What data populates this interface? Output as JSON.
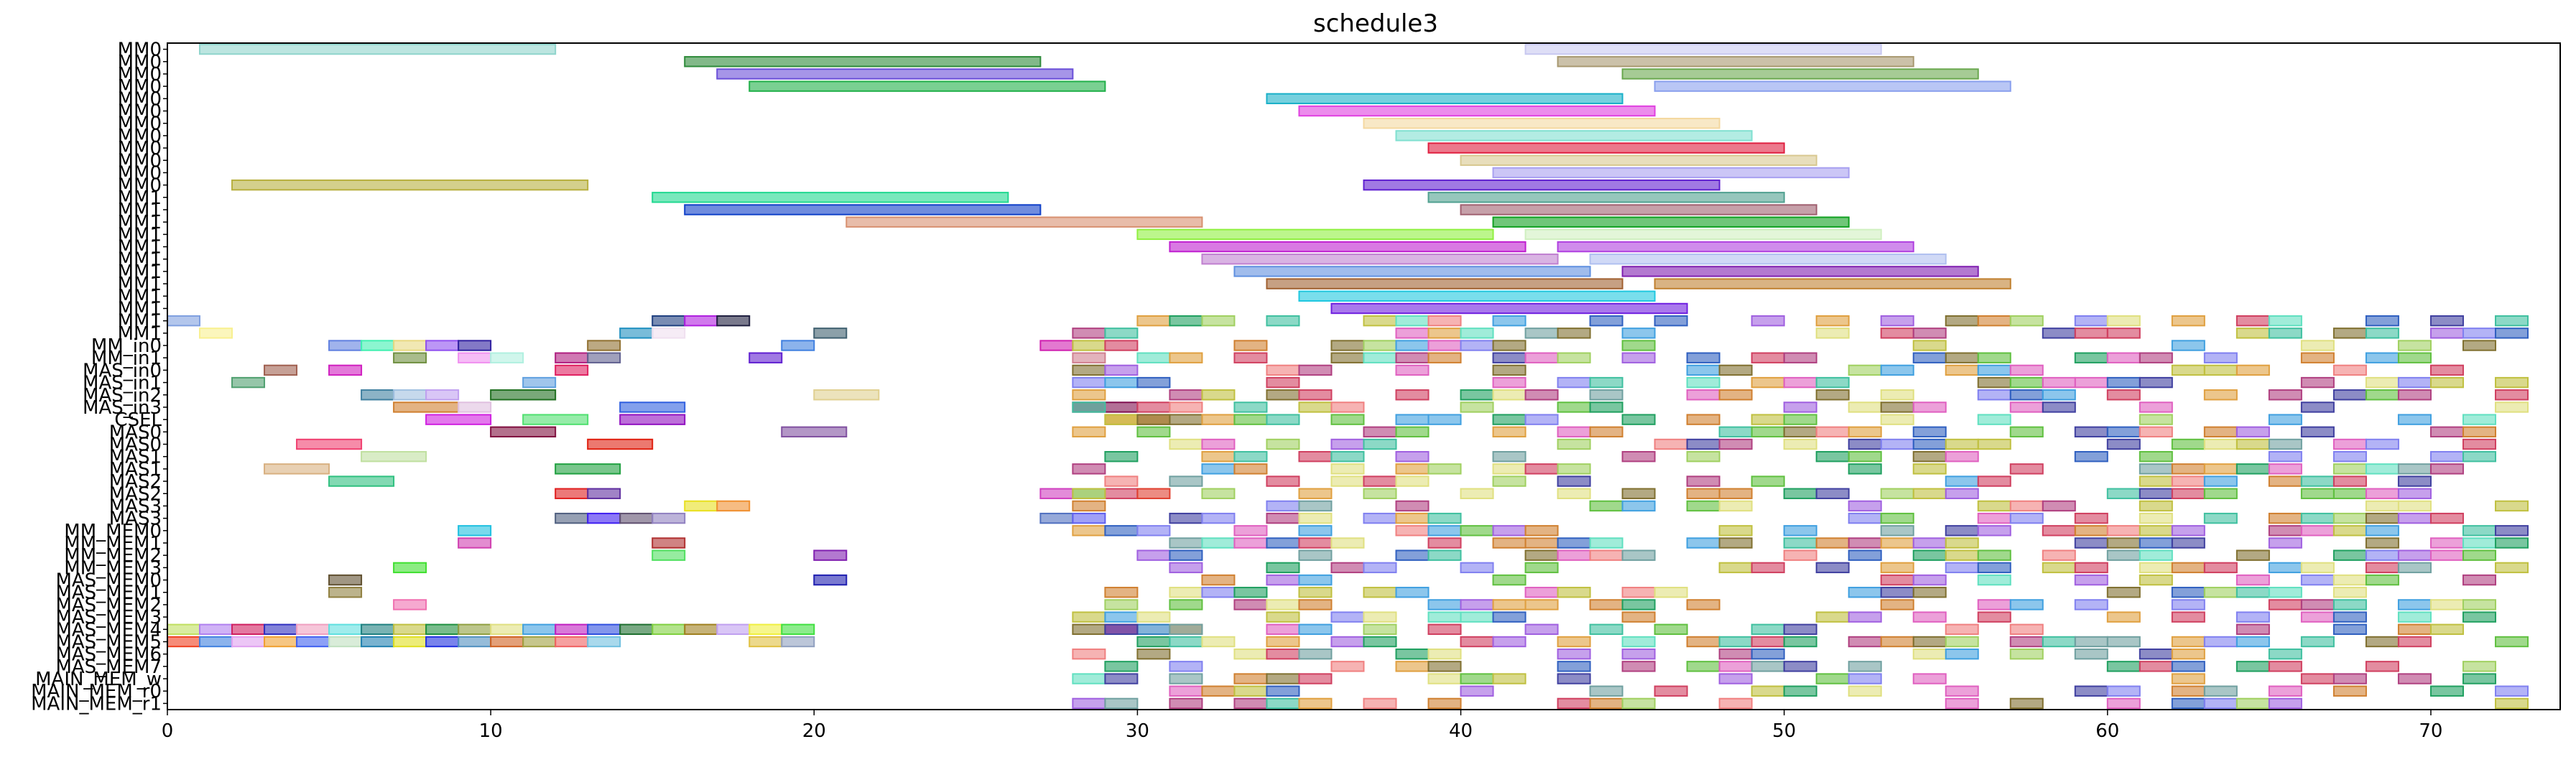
{
  "chart_data": {
    "type": "gantt",
    "title": "schedule3",
    "xlim": [
      0,
      74
    ],
    "xticks": [
      "0",
      "10",
      "20",
      "30",
      "40",
      "50",
      "60",
      "70"
    ],
    "xtick_values": [
      0,
      10,
      20,
      30,
      40,
      50,
      60,
      70
    ],
    "grid": false,
    "rows": [
      "MM0",
      "MM0",
      "MM0",
      "MM0",
      "MM0",
      "MM0",
      "MM0",
      "MM0",
      "MM0",
      "MM0",
      "MM0",
      "MM0",
      "MM1",
      "MM1",
      "MM1",
      "MM1",
      "MM1",
      "MM1",
      "MM1",
      "MM1",
      "MM1",
      "MM1",
      "MM1",
      "MM1",
      "MM_in0",
      "MM_in1",
      "MAS_in0",
      "MAS_in1",
      "MAS_in2",
      "MAS_in3",
      "CSEL",
      "MAS0",
      "MAS0",
      "MAS1",
      "MAS1",
      "MAS2",
      "MAS2",
      "MAS3",
      "MAS3",
      "MM_MEM0",
      "MM_MEM1",
      "MM_MEM2",
      "MM_MEM3",
      "MAS_MEM0",
      "MAS_MEM1",
      "MAS_MEM2",
      "MAS_MEM3",
      "MAS_MEM4",
      "MAS_MEM5",
      "MAS_MEM6",
      "MAS_MEM7",
      "MAIN_MEM_w",
      "MAIN_MEM_r0",
      "MAIN_MEM_r1"
    ],
    "tasks": [
      {
        "row": 0,
        "start": 1,
        "end": 12,
        "color": "#8fd4cc"
      },
      {
        "row": 0,
        "start": 42,
        "end": 53,
        "color": "#c8c8f0"
      },
      {
        "row": 1,
        "start": 16,
        "end": 27,
        "color": "#2e8b3a"
      },
      {
        "row": 1,
        "start": 43,
        "end": 54,
        "color": "#a89870"
      },
      {
        "row": 2,
        "start": 17,
        "end": 28,
        "color": "#6a4fd8"
      },
      {
        "row": 2,
        "start": 45,
        "end": 56,
        "color": "#6aa84f"
      },
      {
        "row": 3,
        "start": 18,
        "end": 29,
        "color": "#22b04a"
      },
      {
        "row": 3,
        "start": 46,
        "end": 57,
        "color": "#8aa0ee"
      },
      {
        "row": 4,
        "start": 34,
        "end": 45,
        "color": "#1ab0c8"
      },
      {
        "row": 5,
        "start": 35,
        "end": 46,
        "color": "#e040e0"
      },
      {
        "row": 6,
        "start": 37,
        "end": 48,
        "color": "#f4d8a0"
      },
      {
        "row": 7,
        "start": 38,
        "end": 49,
        "color": "#80e0d0"
      },
      {
        "row": 8,
        "start": 39,
        "end": 50,
        "color": "#e02040"
      },
      {
        "row": 9,
        "start": 40,
        "end": 51,
        "color": "#d8c890"
      },
      {
        "row": 10,
        "start": 41,
        "end": 52,
        "color": "#a8a0f0"
      },
      {
        "row": 11,
        "start": 2,
        "end": 13,
        "color": "#b8b040"
      },
      {
        "row": 11,
        "start": 37,
        "end": 48,
        "color": "#6020d0"
      },
      {
        "row": 12,
        "start": 15,
        "end": 26,
        "color": "#20d890"
      },
      {
        "row": 12,
        "start": 39,
        "end": 50,
        "color": "#50a090"
      },
      {
        "row": 13,
        "start": 16,
        "end": 27,
        "color": "#1040c8"
      },
      {
        "row": 13,
        "start": 40,
        "end": 51,
        "color": "#a06070"
      },
      {
        "row": 14,
        "start": 21,
        "end": 32,
        "color": "#d89070"
      },
      {
        "row": 14,
        "start": 41,
        "end": 52,
        "color": "#10a020"
      },
      {
        "row": 15,
        "start": 30,
        "end": 41,
        "color": "#90f040"
      },
      {
        "row": 15,
        "start": 42,
        "end": 53,
        "color": "#d0f0c0"
      },
      {
        "row": 16,
        "start": 31,
        "end": 42,
        "color": "#c020d0"
      },
      {
        "row": 16,
        "start": 43,
        "end": 54,
        "color": "#b040e0"
      },
      {
        "row": 17,
        "start": 32,
        "end": 43,
        "color": "#c080d0"
      },
      {
        "row": 17,
        "start": 44,
        "end": 55,
        "color": "#b0c0f0"
      },
      {
        "row": 18,
        "start": 33,
        "end": 44,
        "color": "#6090e0"
      },
      {
        "row": 18,
        "start": 45,
        "end": 56,
        "color": "#8020b0"
      },
      {
        "row": 19,
        "start": 34,
        "end": 45,
        "color": "#a06030"
      },
      {
        "row": 19,
        "start": 46,
        "end": 57,
        "color": "#c08030"
      },
      {
        "row": 20,
        "start": 35,
        "end": 46,
        "color": "#20c8e0"
      },
      {
        "row": 21,
        "start": 36,
        "end": 47,
        "color": "#7020e0"
      },
      {
        "row": 22,
        "start": 0,
        "end": 1,
        "color": "#80a0e0"
      },
      {
        "row": 22,
        "start": 15,
        "end": 16,
        "color": "#204080"
      },
      {
        "row": 22,
        "start": 16,
        "end": 17,
        "color": "#b020e0"
      },
      {
        "row": 22,
        "start": 17,
        "end": 18,
        "color": "#202040"
      },
      {
        "row": 23,
        "start": 1,
        "end": 2,
        "color": "#f8f090"
      },
      {
        "row": 23,
        "start": 14,
        "end": 15,
        "color": "#2090c0"
      },
      {
        "row": 23,
        "start": 15,
        "end": 16,
        "color": "#f0e0f0"
      },
      {
        "row": 23,
        "start": 20,
        "end": 21,
        "color": "#406070"
      },
      {
        "row": 24,
        "start": 5,
        "end": 6,
        "color": "#6080e0"
      },
      {
        "row": 24,
        "start": 6,
        "end": 7,
        "color": "#40f0b0"
      },
      {
        "row": 24,
        "start": 7,
        "end": 8,
        "color": "#e8d880"
      },
      {
        "row": 24,
        "start": 8,
        "end": 9,
        "color": "#9050f0"
      },
      {
        "row": 24,
        "start": 9,
        "end": 10,
        "color": "#3020a0"
      },
      {
        "row": 24,
        "start": 13,
        "end": 14,
        "color": "#907030"
      },
      {
        "row": 24,
        "start": 19,
        "end": 20,
        "color": "#4080e0"
      },
      {
        "row": 24,
        "start": 27,
        "end": 28,
        "color": "#d020b0"
      },
      {
        "row": 25,
        "start": 7,
        "end": 8,
        "color": "#709040"
      },
      {
        "row": 25,
        "start": 9,
        "end": 10,
        "color": "#f090f0"
      },
      {
        "row": 25,
        "start": 10,
        "end": 11,
        "color": "#b0f0e0"
      },
      {
        "row": 25,
        "start": 12,
        "end": 13,
        "color": "#b02080"
      },
      {
        "row": 25,
        "start": 13,
        "end": 14,
        "color": "#606090"
      },
      {
        "row": 25,
        "start": 18,
        "end": 19,
        "color": "#6020d0"
      },
      {
        "row": 25,
        "start": 28,
        "end": 29,
        "color": "#d08090"
      },
      {
        "row": 26,
        "start": 3,
        "end": 4,
        "color": "#a06050"
      },
      {
        "row": 26,
        "start": 5,
        "end": 6,
        "color": "#d020c0"
      },
      {
        "row": 26,
        "start": 12,
        "end": 13,
        "color": "#e02060"
      },
      {
        "row": 27,
        "start": 2,
        "end": 3,
        "color": "#50a070"
      },
      {
        "row": 27,
        "start": 11,
        "end": 12,
        "color": "#60a0e0"
      },
      {
        "row": 28,
        "start": 6,
        "end": 7,
        "color": "#4080a0"
      },
      {
        "row": 28,
        "start": 7,
        "end": 8,
        "color": "#a0c0e0"
      },
      {
        "row": 28,
        "start": 8,
        "end": 9,
        "color": "#c0a0f0"
      },
      {
        "row": 28,
        "start": 10,
        "end": 12,
        "color": "#207020"
      },
      {
        "row": 28,
        "start": 20,
        "end": 22,
        "color": "#e0d090"
      },
      {
        "row": 29,
        "start": 7,
        "end": 9,
        "color": "#d08030"
      },
      {
        "row": 29,
        "start": 9,
        "end": 10,
        "color": "#e0c0e0"
      },
      {
        "row": 29,
        "start": 14,
        "end": 16,
        "color": "#3060e0"
      },
      {
        "row": 29,
        "start": 28,
        "end": 30,
        "color": "#801050"
      },
      {
        "row": 30,
        "start": 8,
        "end": 10,
        "color": "#d020e0"
      },
      {
        "row": 30,
        "start": 11,
        "end": 13,
        "color": "#50e070"
      },
      {
        "row": 30,
        "start": 14,
        "end": 16,
        "color": "#9010c0"
      },
      {
        "row": 30,
        "start": 29,
        "end": 31,
        "color": "#f08020"
      },
      {
        "row": 31,
        "start": 10,
        "end": 12,
        "color": "#801040"
      },
      {
        "row": 31,
        "start": 19,
        "end": 21,
        "color": "#8050a0"
      },
      {
        "row": 32,
        "start": 4,
        "end": 6,
        "color": "#f04070"
      },
      {
        "row": 32,
        "start": 13,
        "end": 15,
        "color": "#e02010"
      },
      {
        "row": 33,
        "start": 6,
        "end": 8,
        "color": "#c0e0a0"
      },
      {
        "row": 34,
        "start": 3,
        "end": 5,
        "color": "#d8b080"
      },
      {
        "row": 34,
        "start": 12,
        "end": 14,
        "color": "#20a040"
      },
      {
        "row": 35,
        "start": 5,
        "end": 7,
        "color": "#30c080"
      },
      {
        "row": 36,
        "start": 12,
        "end": 13,
        "color": "#e02020"
      },
      {
        "row": 36,
        "start": 13,
        "end": 14,
        "color": "#6030a0"
      },
      {
        "row": 36,
        "start": 27,
        "end": 28,
        "color": "#d040c0"
      },
      {
        "row": 36,
        "start": 28,
        "end": 29,
        "color": "#40e0c0"
      },
      {
        "row": 36,
        "start": 29,
        "end": 30,
        "color": "#d04060"
      },
      {
        "row": 36,
        "start": 30,
        "end": 31,
        "color": "#e04030"
      },
      {
        "row": 37,
        "start": 16,
        "end": 17,
        "color": "#e8e020"
      },
      {
        "row": 37,
        "start": 17,
        "end": 18,
        "color": "#f09030"
      },
      {
        "row": 38,
        "start": 12,
        "end": 13,
        "color": "#506080"
      },
      {
        "row": 38,
        "start": 13,
        "end": 14,
        "color": "#4020f0"
      },
      {
        "row": 38,
        "start": 14,
        "end": 15,
        "color": "#605070"
      },
      {
        "row": 38,
        "start": 15,
        "end": 16,
        "color": "#9080c0"
      },
      {
        "row": 38,
        "start": 27,
        "end": 28,
        "color": "#5070c0"
      },
      {
        "row": 38,
        "start": 28,
        "end": 29,
        "color": "#6060f0"
      },
      {
        "row": 39,
        "start": 9,
        "end": 10,
        "color": "#20c0e0"
      },
      {
        "row": 40,
        "start": 9,
        "end": 10,
        "color": "#d040b0"
      },
      {
        "row": 40,
        "start": 15,
        "end": 16,
        "color": "#b03030"
      },
      {
        "row": 41,
        "start": 15,
        "end": 16,
        "color": "#50e060"
      },
      {
        "row": 41,
        "start": 20,
        "end": 21,
        "color": "#8020b0"
      },
      {
        "row": 42,
        "start": 7,
        "end": 8,
        "color": "#40e030"
      },
      {
        "row": 43,
        "start": 5,
        "end": 6,
        "color": "#605030"
      },
      {
        "row": 43,
        "start": 20,
        "end": 21,
        "color": "#2020b0"
      },
      {
        "row": 44,
        "start": 5,
        "end": 6,
        "color": "#908040"
      },
      {
        "row": 45,
        "start": 7,
        "end": 8,
        "color": "#f070b0"
      },
      {
        "row": 47,
        "start": 0,
        "end": 1,
        "color": "#c0e060"
      },
      {
        "row": 47,
        "start": 1,
        "end": 2,
        "color": "#b080f0"
      },
      {
        "row": 47,
        "start": 2,
        "end": 3,
        "color": "#d02060"
      },
      {
        "row": 47,
        "start": 3,
        "end": 4,
        "color": "#3030c0"
      },
      {
        "row": 47,
        "start": 4,
        "end": 5,
        "color": "#f0a0c0"
      },
      {
        "row": 47,
        "start": 5,
        "end": 6,
        "color": "#60e0e0"
      },
      {
        "row": 47,
        "start": 6,
        "end": 7,
        "color": "#208080"
      },
      {
        "row": 47,
        "start": 7,
        "end": 8,
        "color": "#c0c040"
      },
      {
        "row": 47,
        "start": 8,
        "end": 9,
        "color": "#209040"
      },
      {
        "row": 47,
        "start": 9,
        "end": 10,
        "color": "#90a040"
      },
      {
        "row": 47,
        "start": 10,
        "end": 11,
        "color": "#e0e080"
      },
      {
        "row": 47,
        "start": 11,
        "end": 12,
        "color": "#40a0e0"
      },
      {
        "row": 47,
        "start": 12,
        "end": 13,
        "color": "#c020c0"
      },
      {
        "row": 47,
        "start": 13,
        "end": 14,
        "color": "#3050e0"
      },
      {
        "row": 47,
        "start": 14,
        "end": 15,
        "color": "#207030"
      },
      {
        "row": 47,
        "start": 15,
        "end": 16,
        "color": "#80d040"
      },
      {
        "row": 47,
        "start": 16,
        "end": 17,
        "color": "#a08020"
      },
      {
        "row": 47,
        "start": 17,
        "end": 18,
        "color": "#c0a0f0"
      },
      {
        "row": 47,
        "start": 18,
        "end": 19,
        "color": "#f0f040"
      },
      {
        "row": 47,
        "start": 19,
        "end": 20,
        "color": "#40e040"
      },
      {
        "row": 47,
        "start": 29,
        "end": 30,
        "color": "#d01080"
      },
      {
        "row": 47,
        "start": 30,
        "end": 31,
        "color": "#3080c0"
      },
      {
        "row": 47,
        "start": 31,
        "end": 32,
        "color": "#e09040"
      },
      {
        "row": 48,
        "start": 0,
        "end": 1,
        "color": "#f04020"
      },
      {
        "row": 48,
        "start": 1,
        "end": 2,
        "color": "#4080e0"
      },
      {
        "row": 48,
        "start": 2,
        "end": 3,
        "color": "#e0a0f0"
      },
      {
        "row": 48,
        "start": 3,
        "end": 4,
        "color": "#f0a030"
      },
      {
        "row": 48,
        "start": 4,
        "end": 5,
        "color": "#4060f0"
      },
      {
        "row": 48,
        "start": 5,
        "end": 6,
        "color": "#c0e0c0"
      },
      {
        "row": 48,
        "start": 6,
        "end": 7,
        "color": "#2080b0"
      },
      {
        "row": 48,
        "start": 7,
        "end": 8,
        "color": "#e0e020"
      },
      {
        "row": 48,
        "start": 8,
        "end": 9,
        "color": "#2030e0"
      },
      {
        "row": 48,
        "start": 9,
        "end": 10,
        "color": "#5090c0"
      },
      {
        "row": 48,
        "start": 10,
        "end": 11,
        "color": "#d06020"
      },
      {
        "row": 48,
        "start": 11,
        "end": 12,
        "color": "#a0a040"
      },
      {
        "row": 48,
        "start": 12,
        "end": 13,
        "color": "#f06060"
      },
      {
        "row": 48,
        "start": 13,
        "end": 14,
        "color": "#70c0e0"
      },
      {
        "row": 48,
        "start": 18,
        "end": 19,
        "color": "#e0c040"
      },
      {
        "row": 48,
        "start": 19,
        "end": 20,
        "color": "#90a0c0"
      }
    ],
    "right_cluster_markers": [
      {
        "row": 22,
        "start": 30,
        "end": 46
      },
      {
        "row": 23,
        "start": 30,
        "end": 46
      },
      {
        "row": 24,
        "start": 32,
        "end": 46
      },
      {
        "row": 25,
        "start": 45,
        "end": 68
      },
      {
        "row": 26,
        "start": 29,
        "end": 68
      },
      {
        "row": 27,
        "start": 29,
        "end": 67
      },
      {
        "row": 28,
        "start": 30,
        "end": 70
      },
      {
        "row": 29,
        "start": 29,
        "end": 70
      }
    ]
  }
}
